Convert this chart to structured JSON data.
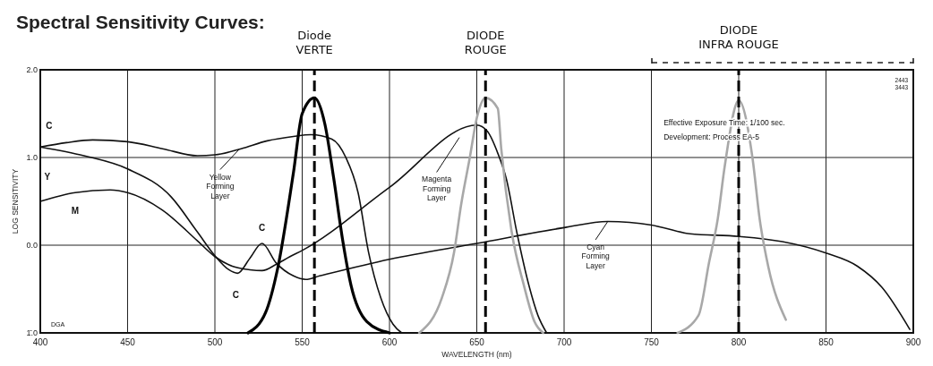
{
  "chart_data": {
    "type": "line",
    "title": "Spectral Sensitivity Curves:",
    "xlabel": "WAVELENGTH (nm)",
    "ylabel": "LOG SENSITIVITY",
    "xlim": [
      400,
      900
    ],
    "xticks": [
      400,
      450,
      500,
      550,
      600,
      650,
      700,
      750,
      800,
      850,
      900
    ],
    "ylim": [
      -1,
      2
    ],
    "yticks": [
      {
        "value": -1,
        "label": "1̄.0"
      },
      {
        "value": 0,
        "label": "0.0"
      },
      {
        "value": 1,
        "label": "1.0"
      },
      {
        "value": 2,
        "label": "2.0"
      }
    ],
    "grid": true,
    "legend": false,
    "line_style": "solid",
    "marker": "none",
    "series": [
      {
        "name": "Yellow Forming Layer",
        "color": "#111111",
        "x": [
          400,
          415,
          430,
          450,
          470,
          490,
          500,
          515,
          530,
          545,
          555,
          567,
          575,
          582,
          588,
          595,
          602,
          607
        ],
        "values": [
          1.12,
          1.17,
          1.2,
          1.18,
          1.1,
          1.02,
          1.03,
          1.1,
          1.19,
          1.24,
          1.26,
          1.21,
          1.0,
          0.6,
          -0.08,
          -0.6,
          -0.9,
          -1.0
        ]
      },
      {
        "name": "Magenta Forming Layer",
        "color": "#111111",
        "x": [
          400,
          420,
          440,
          450,
          470,
          490,
          500,
          510,
          520,
          527,
          535,
          543,
          550,
          600,
          650,
          656,
          662,
          667,
          673,
          680,
          685,
          690
        ],
        "values": [
          0.5,
          0.6,
          0.63,
          0.6,
          0.4,
          0.05,
          -0.13,
          -0.24,
          -0.28,
          -0.29,
          -0.22,
          -0.13,
          -0.06,
          0.66,
          1.37,
          1.3,
          1.05,
          0.75,
          0.14,
          -0.47,
          -0.8,
          -1.0
        ]
      },
      {
        "name": "Cyan Forming Layer",
        "color": "#111111",
        "x": [
          400,
          425,
          450,
          475,
          490,
          500,
          508,
          513,
          520,
          527,
          535,
          545,
          552,
          560,
          600,
          650,
          700,
          725,
          750,
          772,
          800,
          825,
          850,
          868,
          882,
          898
        ],
        "values": [
          1.12,
          1.02,
          0.87,
          0.55,
          0.15,
          -0.12,
          -0.28,
          -0.32,
          -0.15,
          0.02,
          -0.2,
          -0.35,
          -0.39,
          -0.35,
          -0.16,
          0.02,
          0.2,
          0.27,
          0.23,
          0.13,
          0.1,
          0.04,
          -0.09,
          -0.24,
          -0.48,
          -0.96
        ]
      },
      {
        "color": "#000000",
        "x": [
          519,
          529,
          536,
          545,
          550,
          557,
          563,
          568,
          573,
          578,
          587,
          600
        ],
        "values": [
          -1.0,
          -0.77,
          -0.26,
          0.83,
          1.5,
          1.68,
          1.38,
          0.77,
          0.08,
          -0.46,
          -0.87,
          -1.0
        ]
      },
      {
        "color": "#a8a8a8",
        "x": [
          617,
          630,
          637,
          641,
          646,
          650,
          655,
          662,
          664,
          670,
          677,
          683,
          688
        ],
        "values": [
          -1.0,
          -0.6,
          -0.08,
          0.46,
          1.0,
          1.45,
          1.68,
          1.56,
          1.1,
          0.15,
          -0.46,
          -0.87,
          -1.0
        ]
      },
      {
        "color": "#a8a8a8",
        "x": [
          765,
          777,
          783,
          788,
          792,
          800,
          808,
          812,
          817,
          827
        ],
        "values": [
          -1.0,
          -0.8,
          -0.2,
          0.3,
          0.9,
          1.65,
          0.98,
          0.3,
          -0.25,
          -0.85
        ]
      }
    ],
    "ref_lines": [
      {
        "axis": "x",
        "value": 557,
        "label": "Diode VERTE"
      },
      {
        "axis": "x",
        "value": 655,
        "label": "DIODE ROUGE"
      },
      {
        "axis": "x",
        "value": 800,
        "label": "DIODE INFRA ROUGE"
      }
    ],
    "annotations": [
      "C",
      "Y",
      "M",
      "C",
      "C",
      "Effective Exposure Time: 1/100 sec.",
      "Development: Process EA-5",
      "DGA",
      "2443",
      "3443"
    ]
  }
}
